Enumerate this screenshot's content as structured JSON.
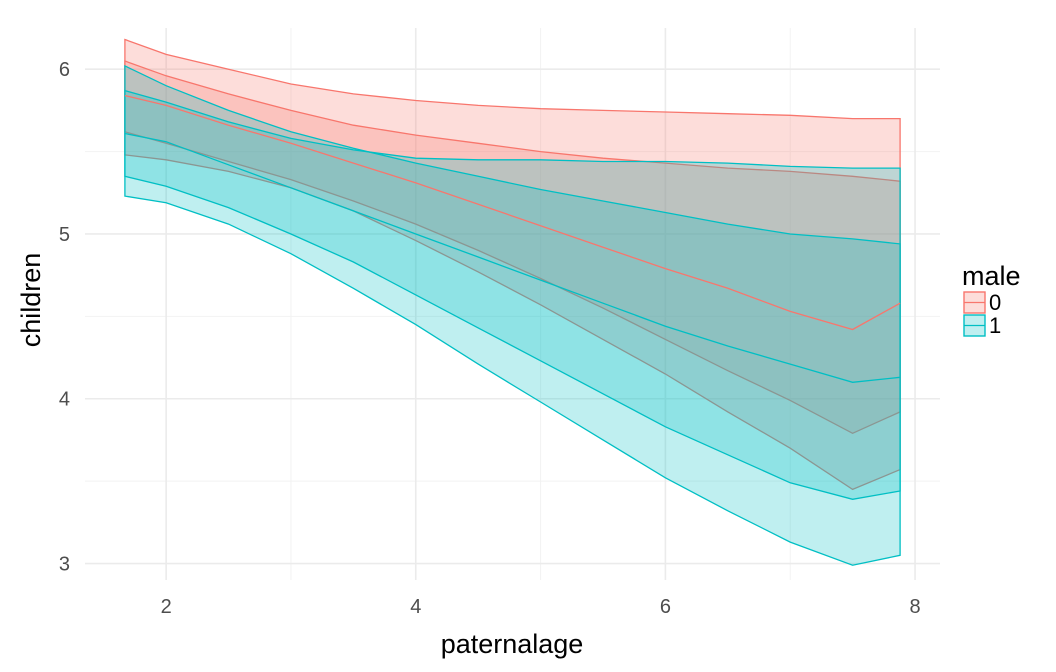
{
  "chart_data": {
    "type": "area",
    "xlabel": "paternalage",
    "ylabel": "children",
    "xlim": [
      1.35,
      8.2
    ],
    "ylim": [
      2.9,
      6.25
    ],
    "x_ticks": [
      2,
      4,
      6,
      8
    ],
    "y_ticks": [
      3,
      4,
      5,
      6
    ],
    "grid": true,
    "legend": {
      "title": "male",
      "position": "right"
    },
    "x": [
      1.67,
      2,
      2.5,
      3,
      3.5,
      4,
      4.5,
      5,
      5.5,
      6,
      6.5,
      7,
      7.5,
      7.88
    ],
    "series": [
      {
        "name": "0",
        "color": "#F8766D",
        "bands": [
          {
            "lower": [
              5.48,
              5.45,
              5.38,
              5.28,
              5.14,
              4.96,
              4.77,
              4.57,
              4.36,
              4.15,
              3.92,
              3.7,
              3.45,
              3.57
            ],
            "upper": [
              6.05,
              5.96,
              5.85,
              5.75,
              5.66,
              5.6,
              5.55,
              5.5,
              5.46,
              5.43,
              5.4,
              5.38,
              5.35,
              5.32
            ]
          },
          {
            "lower": [
              5.62,
              5.55,
              5.44,
              5.33,
              5.2,
              5.06,
              4.9,
              4.73,
              4.55,
              4.36,
              4.17,
              3.99,
              3.79,
              3.92
            ],
            "upper": [
              6.18,
              6.09,
              6.0,
              5.91,
              5.85,
              5.81,
              5.78,
              5.76,
              5.75,
              5.74,
              5.73,
              5.72,
              5.7,
              5.7
            ]
          }
        ],
        "fit": [
          5.84,
          5.78,
          5.66,
          5.55,
          5.43,
          5.31,
          5.18,
          5.05,
          4.92,
          4.79,
          4.67,
          4.53,
          4.42,
          4.58
        ]
      },
      {
        "name": "1",
        "color": "#00BFC4",
        "bands": [
          {
            "lower": [
              5.35,
              5.29,
              5.16,
              5.0,
              4.83,
              4.63,
              4.43,
              4.23,
              4.03,
              3.83,
              3.66,
              3.49,
              3.39,
              3.44
            ],
            "upper": [
              6.02,
              5.9,
              5.75,
              5.62,
              5.52,
              5.43,
              5.35,
              5.27,
              5.2,
              5.13,
              5.06,
              5.0,
              4.97,
              4.94
            ]
          },
          {
            "lower": [
              5.23,
              5.19,
              5.06,
              4.88,
              4.67,
              4.45,
              4.21,
              3.98,
              3.75,
              3.52,
              3.32,
              3.13,
              2.99,
              3.05
            ],
            "upper": [
              5.87,
              5.8,
              5.68,
              5.58,
              5.51,
              5.46,
              5.45,
              5.45,
              5.44,
              5.44,
              5.43,
              5.41,
              5.4,
              5.4
            ]
          }
        ],
        "fit": [
          5.61,
          5.56,
          5.42,
          5.28,
          5.14,
          5.0,
          4.86,
          4.72,
          4.58,
          4.44,
          4.32,
          4.21,
          4.1,
          4.13
        ]
      }
    ]
  }
}
